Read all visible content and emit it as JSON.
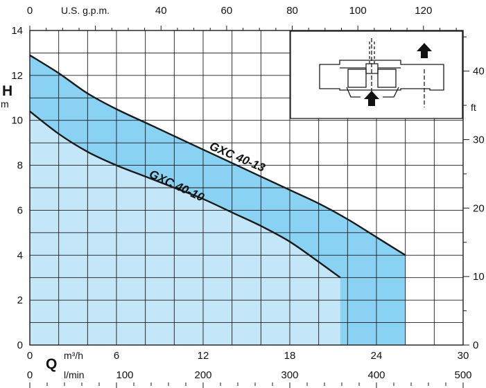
{
  "chart_data": {
    "type": "area",
    "x_unit": "m³/h",
    "y_unit": "m",
    "xlim": [
      0,
      30
    ],
    "ylim": [
      0,
      14
    ],
    "grid": true,
    "series": [
      {
        "name": "GXC 40-13",
        "x": [
          0,
          2,
          4,
          6,
          8,
          10,
          12,
          14,
          16,
          18,
          20,
          22,
          24,
          26
        ],
        "y": [
          12.9,
          12.1,
          11.2,
          10.5,
          9.9,
          9.3,
          8.7,
          8.1,
          7.5,
          6.9,
          6.3,
          5.6,
          4.8,
          4.0
        ]
      },
      {
        "name": "GXC 40-10",
        "x": [
          0,
          2,
          4,
          6,
          8,
          10,
          12,
          14,
          16,
          18,
          20,
          21.5
        ],
        "y": [
          10.4,
          9.4,
          8.6,
          8.0,
          7.5,
          7.0,
          6.5,
          5.9,
          5.3,
          4.6,
          3.7,
          3.0
        ]
      }
    ],
    "left_axis": {
      "label": "H",
      "unit": "m",
      "ticks": [
        "0",
        "2",
        "4",
        "6",
        "8",
        "10",
        "12",
        "14"
      ]
    },
    "right_axis": {
      "unit": "ft",
      "ticks": [
        "0",
        "10",
        "20",
        "30",
        "40"
      ]
    },
    "top_axis": {
      "label": "U.S. g.p.m.",
      "ticks": [
        "0",
        "40",
        "60",
        "80",
        "100",
        "120"
      ]
    },
    "bottom_axis_m3h": {
      "label": "Q",
      "unit": "m³/h",
      "ticks": [
        "0",
        "6",
        "12",
        "18",
        "24",
        "30"
      ]
    },
    "bottom_axis_lmin": {
      "unit": "l/min",
      "ticks": [
        "0",
        "100",
        "200",
        "300",
        "400",
        "500"
      ]
    }
  },
  "colors": {
    "light_fill": "#c4e6f9",
    "dark_fill": "#8ad2f3",
    "grid": "#1a1a1a",
    "curve": "#1a1a1a"
  },
  "inset_icon": "pump-cross-section-diagram"
}
